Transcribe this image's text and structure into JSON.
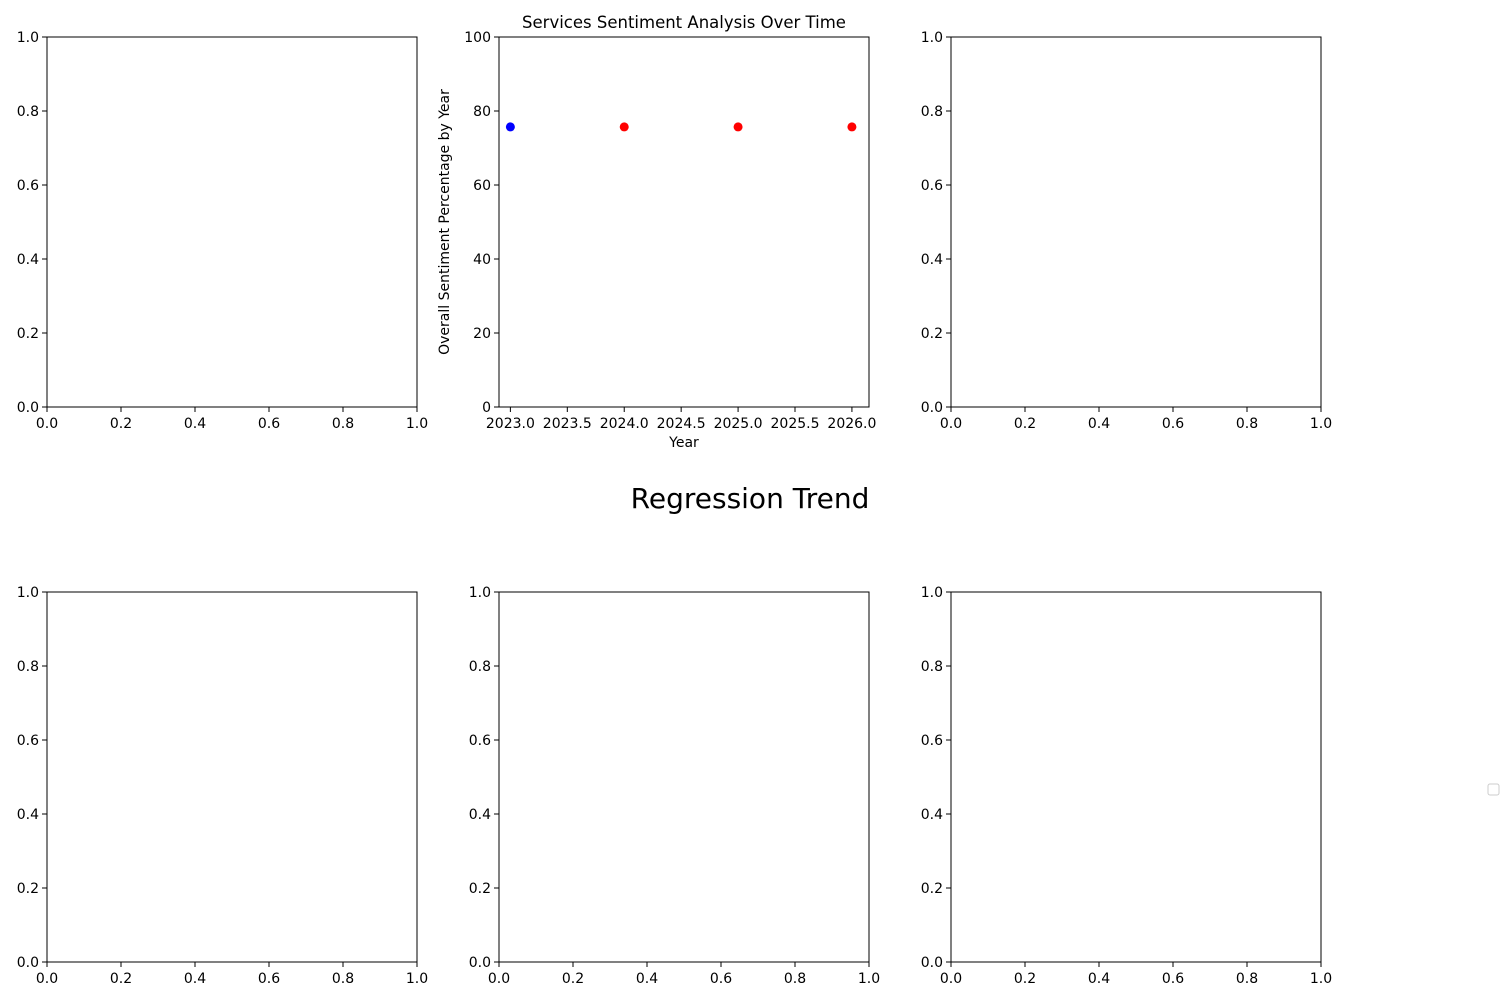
{
  "figure_title": "Regression Trend",
  "colors": {
    "first_point": "#0000ff",
    "other_points": "#ff0000",
    "axes": "#000000",
    "legend_border": "#cccccc"
  },
  "legend": {
    "placement": "right",
    "entries": []
  },
  "chart_data": [
    {
      "position": "top-left",
      "type": "scatter",
      "title": "",
      "xlabel": "",
      "ylabel": "",
      "xlim": [
        0,
        1
      ],
      "ylim": [
        0,
        1
      ],
      "xticks": [
        "0.0",
        "0.2",
        "0.4",
        "0.6",
        "0.8",
        "1.0"
      ],
      "yticks": [
        "0.0",
        "0.2",
        "0.4",
        "0.6",
        "0.8",
        "1.0"
      ],
      "series": []
    },
    {
      "position": "top-center",
      "type": "scatter",
      "title": "Services Sentiment Analysis Over Time",
      "xlabel": "Year",
      "ylabel": "Overall Sentiment Percentage by Year",
      "xlim": [
        2022.9,
        2026.15
      ],
      "ylim": [
        0,
        100
      ],
      "xticks": [
        "2023.0",
        "2023.5",
        "2024.0",
        "2024.5",
        "2025.0",
        "2025.5",
        "2026.0"
      ],
      "xtick_values": [
        2023.0,
        2023.5,
        2024.0,
        2024.5,
        2025.0,
        2025.5,
        2026.0
      ],
      "yticks": [
        "0",
        "20",
        "40",
        "60",
        "80",
        "100"
      ],
      "ytick_values": [
        0,
        20,
        40,
        60,
        80,
        100
      ],
      "series": [
        {
          "points": [
            {
              "x": 2023,
              "y": 75.7,
              "color": "#0000ff"
            },
            {
              "x": 2024,
              "y": 75.7,
              "color": "#ff0000"
            },
            {
              "x": 2025,
              "y": 75.7,
              "color": "#ff0000"
            },
            {
              "x": 2026,
              "y": 75.7,
              "color": "#ff0000"
            }
          ]
        }
      ]
    },
    {
      "position": "top-right",
      "type": "scatter",
      "title": "",
      "xlabel": "",
      "ylabel": "",
      "xlim": [
        0,
        1
      ],
      "ylim": [
        0,
        1
      ],
      "xticks": [
        "0.0",
        "0.2",
        "0.4",
        "0.6",
        "0.8",
        "1.0"
      ],
      "yticks": [
        "0.0",
        "0.2",
        "0.4",
        "0.6",
        "0.8",
        "1.0"
      ],
      "series": []
    },
    {
      "position": "bottom-left",
      "type": "scatter",
      "title": "",
      "xlabel": "",
      "ylabel": "",
      "xlim": [
        0,
        1
      ],
      "ylim": [
        0,
        1
      ],
      "xticks": [
        "0.0",
        "0.2",
        "0.4",
        "0.6",
        "0.8",
        "1.0"
      ],
      "yticks": [
        "0.0",
        "0.2",
        "0.4",
        "0.6",
        "0.8",
        "1.0"
      ],
      "series": []
    },
    {
      "position": "bottom-center",
      "type": "scatter",
      "title": "",
      "xlabel": "",
      "ylabel": "",
      "xlim": [
        0,
        1
      ],
      "ylim": [
        0,
        1
      ],
      "xticks": [
        "0.0",
        "0.2",
        "0.4",
        "0.6",
        "0.8",
        "1.0"
      ],
      "yticks": [
        "0.0",
        "0.2",
        "0.4",
        "0.6",
        "0.8",
        "1.0"
      ],
      "series": []
    },
    {
      "position": "bottom-right",
      "type": "scatter",
      "title": "",
      "xlabel": "",
      "ylabel": "",
      "xlim": [
        0,
        1
      ],
      "ylim": [
        0,
        1
      ],
      "xticks": [
        "0.0",
        "0.2",
        "0.4",
        "0.6",
        "0.8",
        "1.0"
      ],
      "yticks": [
        "0.0",
        "0.2",
        "0.4",
        "0.6",
        "0.8",
        "1.0"
      ],
      "series": []
    }
  ]
}
